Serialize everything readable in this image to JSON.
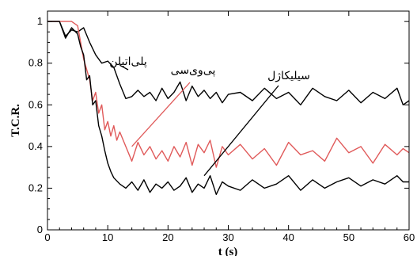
{
  "chart_data": {
    "type": "line",
    "title": "",
    "xlabel": "t (s)",
    "ylabel": "T.C.R.",
    "xlim": [
      0,
      60
    ],
    "ylim": [
      0,
      1.05
    ],
    "grid": false,
    "x_ticks": [
      {
        "value": 0,
        "label": "0"
      },
      {
        "value": 10,
        "label": "10"
      },
      {
        "value": 20,
        "label": "20"
      },
      {
        "value": 30,
        "label": "30"
      },
      {
        "value": 40,
        "label": "40"
      },
      {
        "value": 50,
        "label": "50"
      },
      {
        "value": 60,
        "label": "60"
      }
    ],
    "y_ticks": [
      {
        "value": 0,
        "label": "0"
      },
      {
        "value": 0.2,
        "label": "0.2"
      },
      {
        "value": 0.4,
        "label": "0.4"
      },
      {
        "value": 0.6,
        "label": "0.6"
      },
      {
        "value": 0.8,
        "label": "0.8"
      },
      {
        "value": 1,
        "label": "1"
      }
    ],
    "series": [
      {
        "color": "#000000",
        "x": [
          0,
          2,
          3,
          4,
          5,
          6,
          7,
          8,
          9,
          10,
          11,
          12,
          13,
          14,
          15,
          16,
          17,
          18,
          19,
          20,
          21,
          22,
          23,
          24,
          25,
          26,
          27,
          28,
          29,
          30,
          32,
          34,
          36,
          38,
          40,
          42,
          44,
          46,
          48,
          50,
          52,
          54,
          56,
          58,
          59,
          60
        ],
        "y": [
          1.0,
          1.0,
          0.93,
          0.96,
          0.95,
          0.97,
          0.9,
          0.84,
          0.8,
          0.81,
          0.78,
          0.7,
          0.63,
          0.64,
          0.67,
          0.64,
          0.66,
          0.62,
          0.68,
          0.63,
          0.66,
          0.71,
          0.62,
          0.69,
          0.64,
          0.67,
          0.63,
          0.66,
          0.61,
          0.65,
          0.66,
          0.62,
          0.68,
          0.63,
          0.66,
          0.6,
          0.68,
          0.64,
          0.62,
          0.67,
          0.61,
          0.66,
          0.63,
          0.68,
          0.6,
          0.62
        ]
      },
      {
        "color": "#e05a5a",
        "x": [
          0,
          4,
          5,
          6,
          7,
          7.5,
          8,
          8.5,
          9,
          9.5,
          10,
          10.5,
          11,
          11.5,
          12,
          13,
          14,
          15,
          16,
          17,
          18,
          19,
          20,
          21,
          22,
          23,
          24,
          25,
          26,
          27,
          28,
          29,
          30,
          32,
          34,
          36,
          38,
          40,
          42,
          44,
          46,
          48,
          50,
          52,
          54,
          56,
          58,
          59,
          60
        ],
        "y": [
          1.0,
          1.0,
          0.98,
          0.82,
          0.72,
          0.62,
          0.66,
          0.56,
          0.6,
          0.48,
          0.52,
          0.45,
          0.5,
          0.43,
          0.47,
          0.4,
          0.33,
          0.42,
          0.36,
          0.4,
          0.34,
          0.38,
          0.33,
          0.4,
          0.35,
          0.42,
          0.31,
          0.41,
          0.37,
          0.43,
          0.3,
          0.4,
          0.36,
          0.41,
          0.34,
          0.39,
          0.31,
          0.42,
          0.36,
          0.38,
          0.33,
          0.44,
          0.37,
          0.4,
          0.32,
          0.41,
          0.36,
          0.39,
          0.37
        ]
      },
      {
        "color": "#000000",
        "x": [
          0,
          2,
          3,
          4,
          5,
          5.5,
          6,
          6.5,
          7,
          7.5,
          8,
          8.5,
          9,
          9.5,
          10,
          10.5,
          11,
          12,
          13,
          14,
          15,
          16,
          17,
          18,
          19,
          20,
          21,
          22,
          23,
          24,
          25,
          26,
          27,
          28,
          29,
          30,
          32,
          34,
          36,
          38,
          40,
          42,
          44,
          46,
          48,
          50,
          52,
          54,
          56,
          58,
          59,
          60
        ],
        "y": [
          1.0,
          1.0,
          0.92,
          0.97,
          0.94,
          0.88,
          0.84,
          0.72,
          0.74,
          0.6,
          0.62,
          0.5,
          0.45,
          0.38,
          0.32,
          0.28,
          0.25,
          0.22,
          0.2,
          0.23,
          0.19,
          0.24,
          0.18,
          0.22,
          0.2,
          0.23,
          0.19,
          0.21,
          0.25,
          0.18,
          0.22,
          0.2,
          0.26,
          0.17,
          0.23,
          0.21,
          0.19,
          0.24,
          0.2,
          0.22,
          0.26,
          0.19,
          0.24,
          0.2,
          0.23,
          0.25,
          0.21,
          0.24,
          0.22,
          0.26,
          0.23,
          0.23
        ]
      }
    ],
    "annotations": [
      {
        "text": "پلی‌اتیلن",
        "target_x": 12,
        "target_y": 0.79
      },
      {
        "text": "پی‌وی‌سی",
        "target_x": 14,
        "target_y": 0.4
      },
      {
        "text": "سیلیکاژل",
        "target_x": 26,
        "target_y": 0.26
      }
    ]
  }
}
